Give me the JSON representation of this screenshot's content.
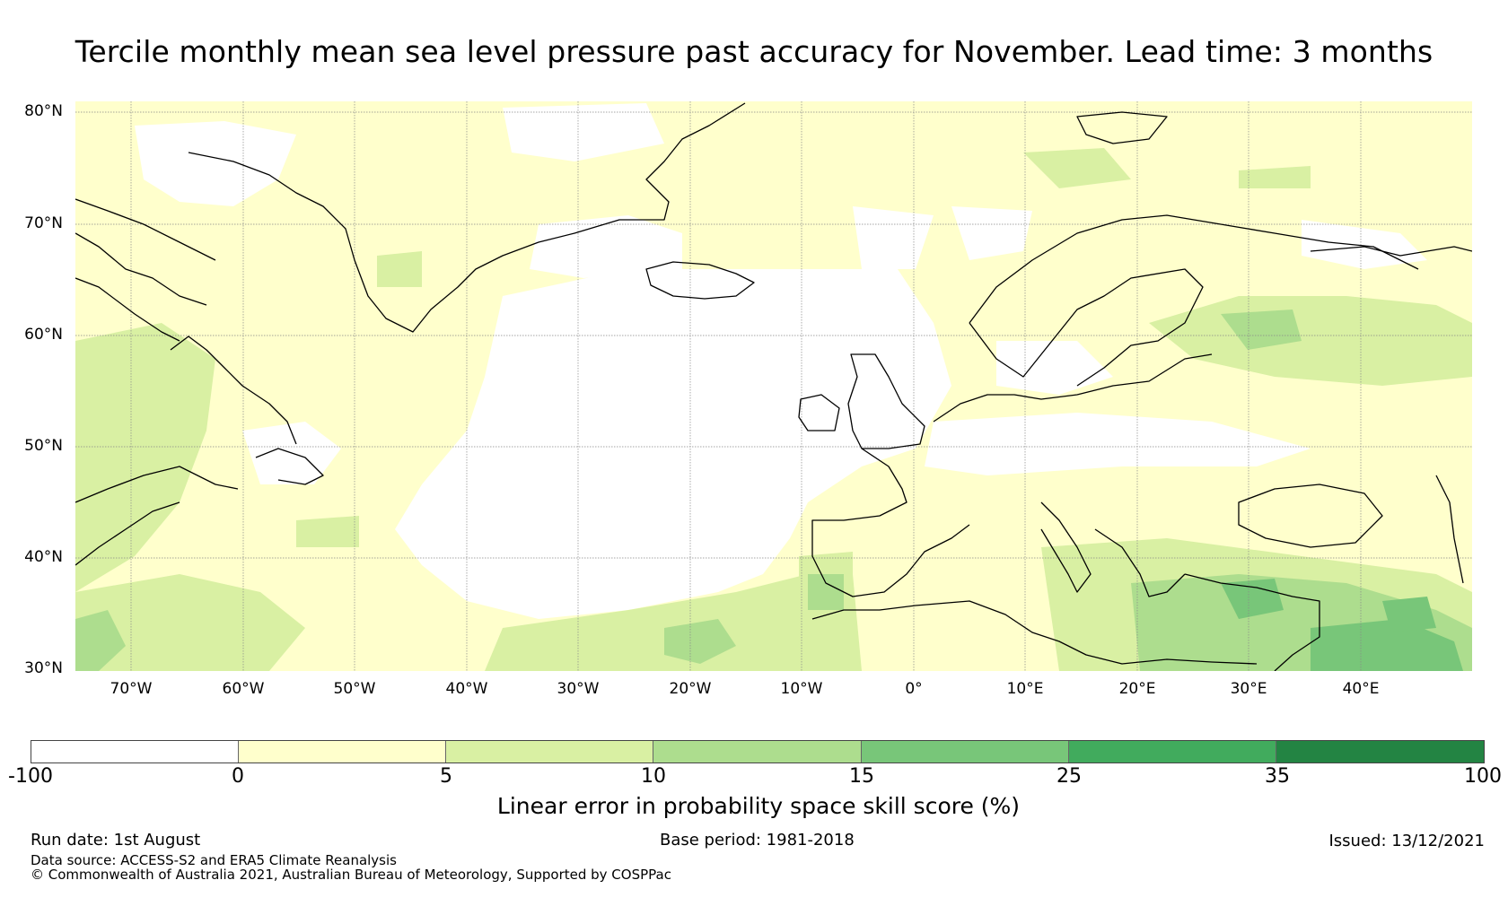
{
  "title": "Tercile monthly mean sea level pressure past accuracy for November. Lead time: 3 months",
  "map": {
    "region": "North Atlantic and Europe",
    "lon_range": [
      -75,
      50
    ],
    "lat_range": [
      30,
      81
    ],
    "lat_labels": [
      "80°N",
      "70°N",
      "60°N",
      "50°N",
      "40°N",
      "30°N"
    ],
    "lon_labels": [
      "70°W",
      "60°W",
      "50°W",
      "40°W",
      "30°W",
      "20°W",
      "10°W",
      "0°",
      "10°E",
      "20°E",
      "30°E",
      "40°E"
    ],
    "gridlines": true
  },
  "colorbar": {
    "tick_labels": [
      "-100",
      "0",
      "5",
      "10",
      "15",
      "25",
      "35",
      "100"
    ],
    "colors": [
      "#ffffff",
      "#ffffcc",
      "#d9f0a3",
      "#addd8e",
      "#78c679",
      "#41ab5d",
      "#238443"
    ],
    "label": "Linear error in probability space skill score (%)"
  },
  "footer": {
    "run_date": "Run date: 1st August",
    "base_period": "Base period: 1981-2018",
    "issued": "Issued: 13/12/2021",
    "data_source": "Data source: ACCESS-S2 and ERA5 Climate Reanalysis",
    "copyright": "© Commonwealth of Australia 2021, Australian Bureau of Meteorology, Supported by COSPPac"
  }
}
